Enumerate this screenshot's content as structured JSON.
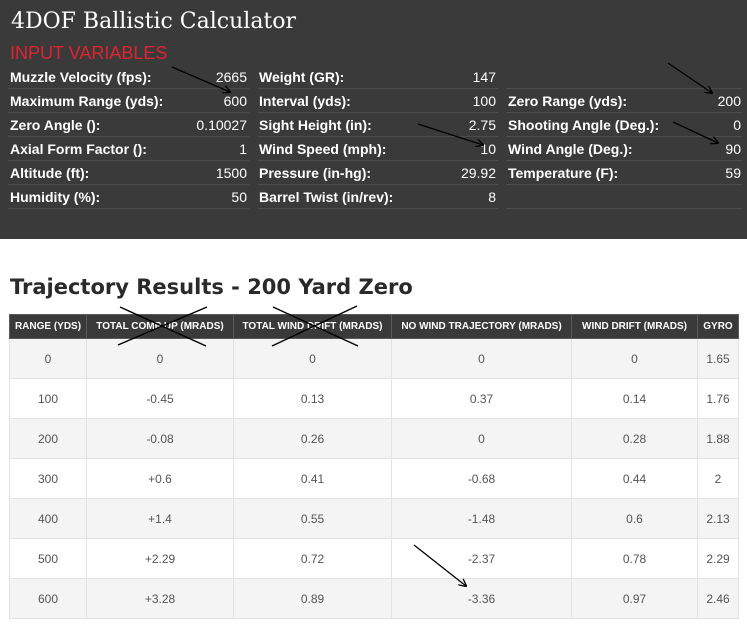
{
  "header": {
    "title": "4DOF Ballistic Calculator",
    "section_label": "INPUT VARIABLES",
    "accent_color": "#e0232f"
  },
  "inputs": [
    [
      {
        "label": "Muzzle Velocity (fps):",
        "value": "2665"
      },
      {
        "label": "Maximum Range (yds):",
        "value": "600"
      },
      {
        "label": "Zero Angle ():",
        "value": "0.10027"
      },
      {
        "label": "Axial Form Factor ():",
        "value": "1"
      },
      {
        "label": "Altitude (ft):",
        "value": "1500"
      },
      {
        "label": "Humidity (%):",
        "value": "50"
      }
    ],
    [
      {
        "label": "Weight (GR):",
        "value": "147"
      },
      {
        "label": "Interval (yds):",
        "value": "100"
      },
      {
        "label": "Sight Height (in):",
        "value": "2.75"
      },
      {
        "label": "Wind Speed (mph):",
        "value": "10"
      },
      {
        "label": "Pressure (in-hg):",
        "value": "29.92"
      },
      {
        "label": "Barrel Twist (in/rev):",
        "value": "8"
      }
    ],
    [
      {
        "label": "Zero Range (yds):",
        "value": "200"
      },
      {
        "label": "Shooting Angle (Deg.):",
        "value": "0"
      },
      {
        "label": "Wind Angle (Deg.):",
        "value": "90"
      },
      {
        "label": "Temperature (F):",
        "value": "59"
      }
    ]
  ],
  "results": {
    "heading": "Trajectory Results - 200 Yard Zero",
    "columns": [
      "RANGE (YDS)",
      "TOTAL COMP UP (MRADS)",
      "TOTAL WIND DRIFT (MRADS)",
      "NO WIND TRAJECTORY (MRADS)",
      "WIND DRIFT (MRADS)",
      "GYRO"
    ],
    "rows": [
      [
        "0",
        "0",
        "0",
        "0",
        "0",
        "1.65"
      ],
      [
        "100",
        "-0.45",
        "0.13",
        "0.37",
        "0.14",
        "1.76"
      ],
      [
        "200",
        "-0.08",
        "0.26",
        "0",
        "0.28",
        "1.88"
      ],
      [
        "300",
        "+0.6",
        "0.41",
        "-0.68",
        "0.44",
        "2"
      ],
      [
        "400",
        "+1.4",
        "0.55",
        "-1.48",
        "0.6",
        "2.13"
      ],
      [
        "500",
        "+2.29",
        "0.72",
        "-2.37",
        "0.78",
        "2.29"
      ],
      [
        "600",
        "+3.28",
        "0.89",
        "-3.36",
        "0.97",
        "2.46"
      ]
    ]
  },
  "annotations": {
    "arrows": [
      "arrow-to-muzzle-velocity",
      "arrow-to-zero-range",
      "arrow-to-wind-speed",
      "arrow-to-wind-angle",
      "arrow-to-600-yd-trajectory"
    ],
    "cross_marks": [
      "cross-total-comp-up",
      "cross-total-wind-drift"
    ]
  }
}
